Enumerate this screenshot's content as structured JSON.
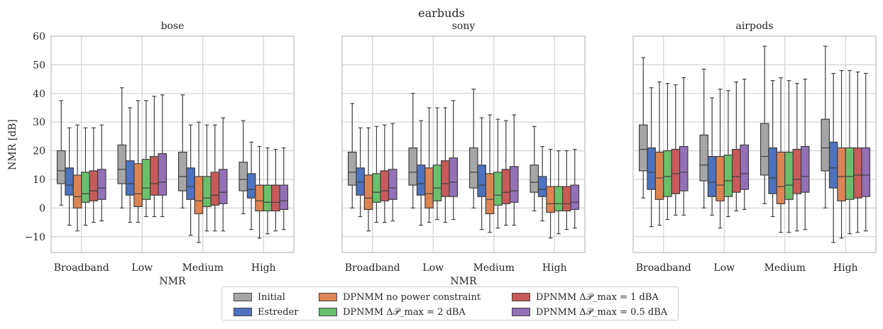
{
  "chart_data": {
    "type": "box",
    "suptitle": "earbuds",
    "ylabel": "NMR [dB]",
    "ylim": [
      -15.5,
      60
    ],
    "yticks": [
      -10,
      0,
      10,
      20,
      30,
      40,
      50,
      60
    ],
    "ytick_labels": [
      "−10",
      "0",
      "10",
      "20",
      "30",
      "40",
      "50",
      "60"
    ],
    "categories": [
      "Broadband",
      "Low",
      "Medium",
      "High"
    ],
    "grid": true,
    "legend_position": "bottom-center",
    "series": [
      {
        "name": "Initial",
        "color": "#a6a6a6"
      },
      {
        "name": "Estreder",
        "color": "#4c72c0"
      },
      {
        "name": "DPNMM no power constraint",
        "color": "#dd8452"
      },
      {
        "name": "DPNMM Δ𝒫_max = 2 dBA",
        "color": "#6ac06a"
      },
      {
        "name": "DPNMM Δ𝒫_max = 1 dBA",
        "color": "#c85a5a"
      },
      {
        "name": "DPNMM Δ𝒫_max = 0.5 dBA",
        "color": "#9370b8"
      }
    ],
    "panels": [
      {
        "title": "bose",
        "xlabel": "NMR",
        "show_ylabel": true,
        "boxes": [
          [
            [
              1,
              8.5,
              13,
              20,
              37.5
            ],
            [
              -6,
              4.5,
              8,
              14,
              28
            ],
            [
              -8,
              0,
              4,
              11.5,
              29
            ],
            [
              -6,
              2,
              5,
              12.5,
              28
            ],
            [
              -5,
              2.5,
              6,
              13,
              28
            ],
            [
              -4.5,
              3,
              7,
              13.5,
              29
            ]
          ],
          [
            [
              0,
              8.5,
              13.5,
              22,
              42
            ],
            [
              -5,
              4.5,
              8.5,
              16.5,
              35
            ],
            [
              -5,
              0.5,
              5,
              15.5,
              37.5
            ],
            [
              -3,
              3,
              7,
              17,
              37.5
            ],
            [
              -3,
              4.5,
              8.5,
              18,
              39
            ],
            [
              -3,
              4.5,
              9,
              19,
              39.5
            ]
          ],
          [
            [
              0,
              6,
              11,
              19.5,
              39.5
            ],
            [
              -9.5,
              3,
              7.5,
              14,
              29
            ],
            [
              -12,
              -2,
              2.5,
              11,
              30
            ],
            [
              -8,
              0.5,
              3.5,
              11,
              29
            ],
            [
              -8,
              1,
              4.5,
              12.5,
              29
            ],
            [
              -8,
              1.5,
              5.5,
              13.5,
              31.5
            ]
          ],
          [
            [
              -2,
              6,
              10,
              16,
              30.5
            ],
            [
              -7.5,
              3.5,
              6.5,
              12,
              23
            ],
            [
              -10.5,
              -1,
              2.5,
              8,
              21.5
            ],
            [
              -9,
              -1,
              2,
              8,
              21
            ],
            [
              -8,
              -1,
              2,
              8,
              20.5
            ],
            [
              -7.5,
              -0.5,
              2.5,
              8,
              21
            ]
          ]
        ]
      },
      {
        "title": "sony",
        "xlabel": "NMR",
        "show_ylabel": false,
        "boxes": [
          [
            [
              0,
              8,
              12.5,
              19.5,
              36.5
            ],
            [
              -3,
              4.5,
              9,
              14,
              28
            ],
            [
              -8,
              -0.5,
              3.5,
              11.5,
              28
            ],
            [
              -5,
              2,
              5.5,
              12,
              28.5
            ],
            [
              -5,
              2.5,
              6,
              13,
              29
            ],
            [
              -4.5,
              3,
              7,
              13.5,
              29.5
            ]
          ],
          [
            [
              0,
              8,
              12.5,
              21,
              40
            ],
            [
              -6,
              4.5,
              8.5,
              15,
              30.5
            ],
            [
              -5,
              0,
              5,
              14,
              35
            ],
            [
              -4,
              2.5,
              7,
              15,
              35
            ],
            [
              -5,
              4,
              8.5,
              16.5,
              35
            ],
            [
              -4,
              4,
              9,
              17.5,
              37.5
            ]
          ],
          [
            [
              0,
              7,
              12.5,
              21,
              41.5
            ],
            [
              -7.5,
              4,
              8,
              15,
              31.5
            ],
            [
              -8.5,
              -2,
              3,
              12,
              32.5
            ],
            [
              -7,
              1,
              4.5,
              12.5,
              31
            ],
            [
              -6,
              1.5,
              5.5,
              13.5,
              30.5
            ],
            [
              -6,
              2,
              6,
              14.5,
              32.5
            ]
          ],
          [
            [
              -1,
              5.5,
              9,
              15,
              28.5
            ],
            [
              -4.5,
              4,
              6.5,
              11,
              21.5
            ],
            [
              -10.5,
              -1.5,
              1.5,
              7.5,
              20.5
            ],
            [
              -9,
              -1,
              1.5,
              7.5,
              20
            ],
            [
              -7.5,
              -1,
              1.5,
              7.5,
              20
            ],
            [
              -7,
              -0.5,
              2,
              8,
              20.5
            ]
          ]
        ]
      },
      {
        "title": "airpods",
        "xlabel": "",
        "show_ylabel": false,
        "boxes": [
          [
            [
              3.5,
              13,
              20.5,
              29,
              52.5
            ],
            [
              -6.5,
              6.5,
              12.5,
              21,
              42
            ],
            [
              -6,
              3,
              10.5,
              19.5,
              44
            ],
            [
              -4,
              4,
              11,
              20,
              43.5
            ],
            [
              -2.5,
              5,
              12,
              20.5,
              43
            ],
            [
              -2.5,
              6,
              12.5,
              21.5,
              45.5
            ]
          ],
          [
            [
              0,
              9.5,
              15,
              25.5,
              48.5
            ],
            [
              -2.5,
              4,
              9,
              18,
              38.5
            ],
            [
              -7,
              2.5,
              8,
              18,
              41.5
            ],
            [
              -3,
              4,
              9.5,
              18.5,
              41
            ],
            [
              -1,
              5.5,
              11,
              20.5,
              44
            ],
            [
              -0.5,
              6.5,
              12,
              22,
              45
            ]
          ],
          [
            [
              1.5,
              11.5,
              18,
              29.5,
              56.5
            ],
            [
              -3,
              5,
              10.5,
              21,
              44.5
            ],
            [
              -8.5,
              1.5,
              7.5,
              19.5,
              45.5
            ],
            [
              -8.5,
              3,
              8,
              19.5,
              44.5
            ],
            [
              -8,
              5,
              10,
              20.5,
              43.5
            ],
            [
              -7.5,
              5.5,
              11,
              21.5,
              45
            ]
          ],
          [
            [
              0,
              13,
              21,
              31,
              56.5
            ],
            [
              -12,
              7,
              14,
              23,
              47
            ],
            [
              -10.5,
              2.5,
              11,
              21,
              48
            ],
            [
              -9,
              3,
              11,
              21,
              48
            ],
            [
              -8.5,
              3.5,
              11.5,
              21,
              47.5
            ],
            [
              -8,
              4,
              11.5,
              21,
              47
            ]
          ]
        ]
      }
    ]
  }
}
